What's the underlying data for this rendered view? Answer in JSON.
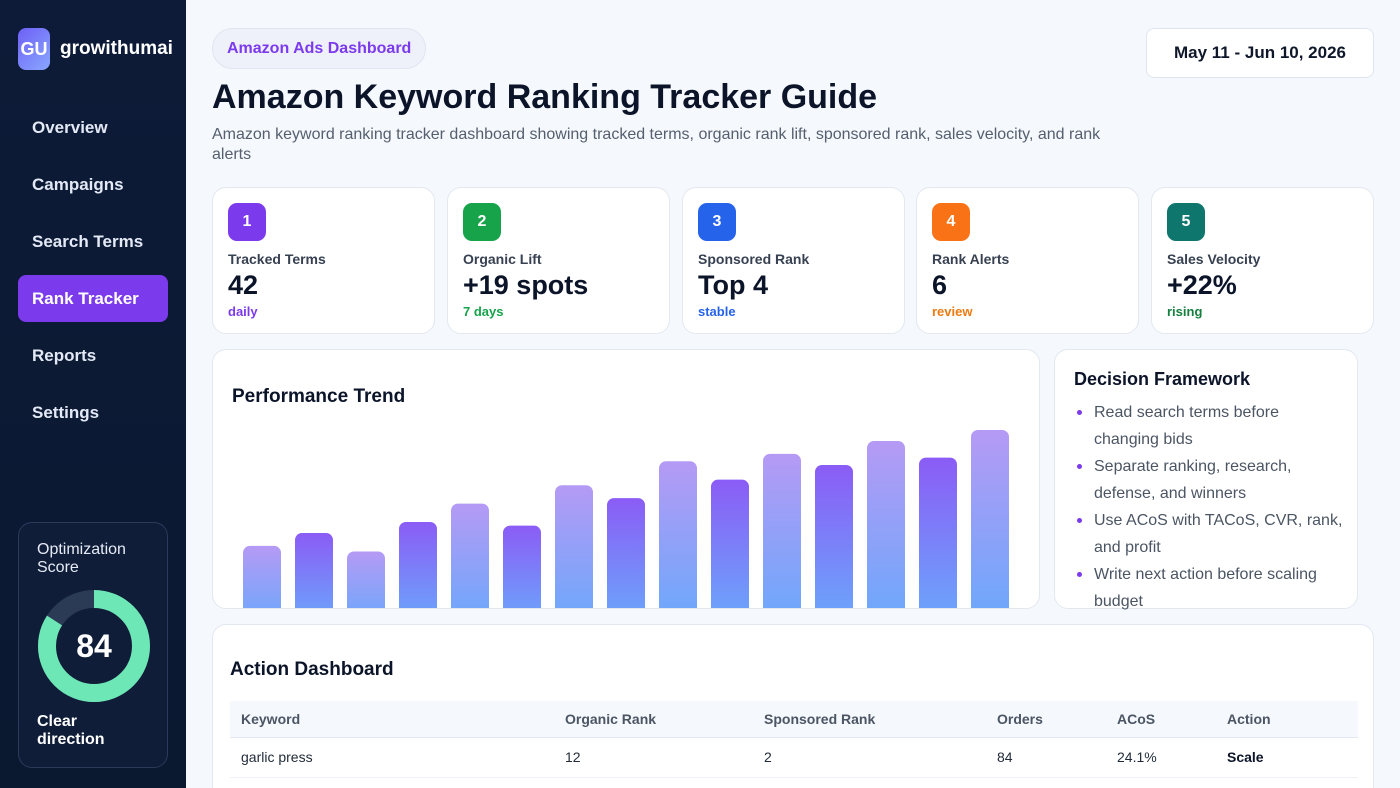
{
  "brand": {
    "logo_text": "GU",
    "name": "growithumai"
  },
  "sidebar": {
    "items": [
      {
        "label": "Overview"
      },
      {
        "label": "Campaigns"
      },
      {
        "label": "Search Terms"
      },
      {
        "label": "Rank Tracker",
        "active": true
      },
      {
        "label": "Reports"
      },
      {
        "label": "Settings"
      }
    ]
  },
  "score": {
    "title": "Optimization Score",
    "value": "84",
    "percent": 84,
    "note": "Clear direction"
  },
  "header": {
    "badge": "Amazon Ads Dashboard",
    "date_range": "May 11 - Jun 10, 2026",
    "title": "Amazon Keyword Ranking Tracker Guide",
    "subtitle": "Amazon keyword ranking tracker dashboard showing tracked terms, organic rank lift, sponsored rank, sales velocity, and rank alerts"
  },
  "kpis": [
    {
      "num": "1",
      "label": "Tracked Terms",
      "value": "42",
      "trend": "daily",
      "color": "#7c3aed",
      "trend_color": "#7c3aed"
    },
    {
      "num": "2",
      "label": "Organic Lift",
      "value": "+19 spots",
      "trend": "7 days",
      "color": "#16a34a",
      "trend_color": "#16a34a"
    },
    {
      "num": "3",
      "label": "Sponsored Rank",
      "value": "Top 4",
      "trend": "stable",
      "color": "#2563eb",
      "trend_color": "#2563eb"
    },
    {
      "num": "4",
      "label": "Rank Alerts",
      "value": "6",
      "trend": "review",
      "color": "#f97316",
      "trend_color": "#ea7a12"
    },
    {
      "num": "5",
      "label": "Sales Velocity",
      "value": "+22%",
      "trend": "rising",
      "color": "#0f766e",
      "trend_color": "#15803d"
    }
  ],
  "chart_data": {
    "type": "bar",
    "title": "Performance Trend",
    "xlabel": "",
    "ylabel": "",
    "ylim": [
      0,
      100
    ],
    "grid": false,
    "values": [
      37,
      44,
      34,
      50,
      60,
      48,
      70,
      63,
      83,
      73,
      87,
      81,
      94,
      85,
      100
    ]
  },
  "framework": {
    "title": "Decision Framework",
    "items": [
      "Read search terms before changing bids",
      "Separate ranking, research, defense, and winners",
      "Use ACoS with TACoS, CVR, rank, and profit",
      "Write next action before scaling budget"
    ]
  },
  "action": {
    "title": "Action Dashboard",
    "columns": [
      "Keyword",
      "Organic Rank",
      "Sponsored Rank",
      "Orders",
      "ACoS",
      "Action"
    ],
    "rows": [
      [
        "garlic press",
        "12",
        "2",
        "84",
        "24.1%",
        "Scale"
      ]
    ]
  },
  "colors": {
    "sidebar_bg": "#0d1b38",
    "accent": "#7c3aed",
    "score_ring": "#6ee7b7",
    "score_track": "#2c3b55",
    "bar_top_dark": "#8b5cf6",
    "bar_top_light": "#b59af5",
    "bar_bottom": "#6aa8fb"
  }
}
